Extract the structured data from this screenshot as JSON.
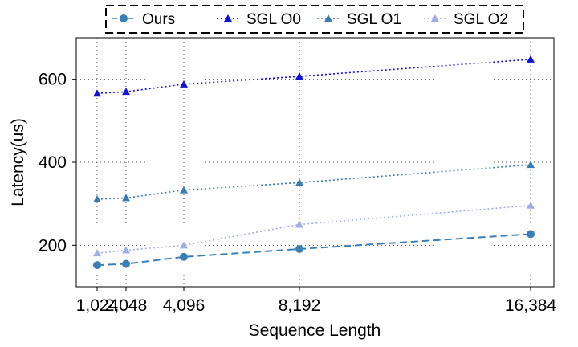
{
  "chart_data": {
    "type": "line",
    "xlabel": "Sequence Length",
    "ylabel": "Latency(us)",
    "x": [
      1024,
      2048,
      4096,
      8192,
      16384
    ],
    "x_tick_labels": [
      "1,024",
      "2,048",
      "4,096",
      "8,192",
      "16,384"
    ],
    "xlim": [
      1024,
      16384
    ],
    "ylim": [
      100,
      700
    ],
    "y_ticks": [
      200,
      400,
      600
    ],
    "y_tick_labels": [
      "200",
      "400",
      "600"
    ],
    "grid": true,
    "legend_position": "top",
    "series": [
      {
        "name": "Ours",
        "values": [
          152,
          155,
          172,
          191,
          227
        ],
        "color": "#3a80b8",
        "marker": "circle",
        "line": "dashed"
      },
      {
        "name": "SGL O0",
        "values": [
          566,
          570,
          588,
          607,
          648
        ],
        "color": "#1010d8",
        "marker": "triangle",
        "line": "dotted"
      },
      {
        "name": "SGL O1",
        "values": [
          311,
          314,
          333,
          351,
          394
        ],
        "color": "#3b7bb3",
        "marker": "triangle",
        "line": "dotted"
      },
      {
        "name": "SGL O2",
        "values": [
          181,
          188,
          200,
          250,
          296
        ],
        "color": "#9eaee6",
        "marker": "triangle",
        "line": "dotted"
      }
    ]
  }
}
